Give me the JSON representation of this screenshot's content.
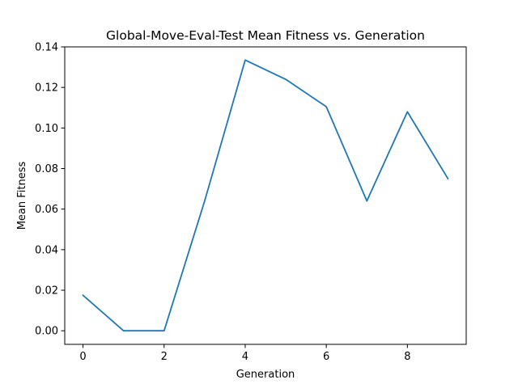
{
  "chart_data": {
    "type": "line",
    "title": "Global-Move-Eval-Test Mean Fitness vs. Generation",
    "xlabel": "Generation",
    "ylabel": "Mean Fitness",
    "xlim": [
      -0.45,
      9.45
    ],
    "ylim": [
      -0.0067,
      0.14
    ],
    "x_ticks": [
      0,
      2,
      4,
      6,
      8
    ],
    "y_ticks": [
      0.0,
      0.02,
      0.04,
      0.06,
      0.08,
      0.1,
      0.12,
      0.14
    ],
    "x_tick_labels": [
      "0",
      "2",
      "4",
      "6",
      "8"
    ],
    "y_tick_labels": [
      "0.00",
      "0.02",
      "0.04",
      "0.06",
      "0.08",
      "0.10",
      "0.12",
      "0.14"
    ],
    "grid": false,
    "series": [
      {
        "x": [
          0,
          1,
          2,
          3,
          4,
          5,
          6,
          7,
          8,
          9
        ],
        "values": [
          0.0175,
          0.0,
          0.0,
          0.064,
          0.1335,
          0.124,
          0.1105,
          0.064,
          0.108,
          0.075
        ],
        "color": "#1f77b4"
      }
    ]
  }
}
